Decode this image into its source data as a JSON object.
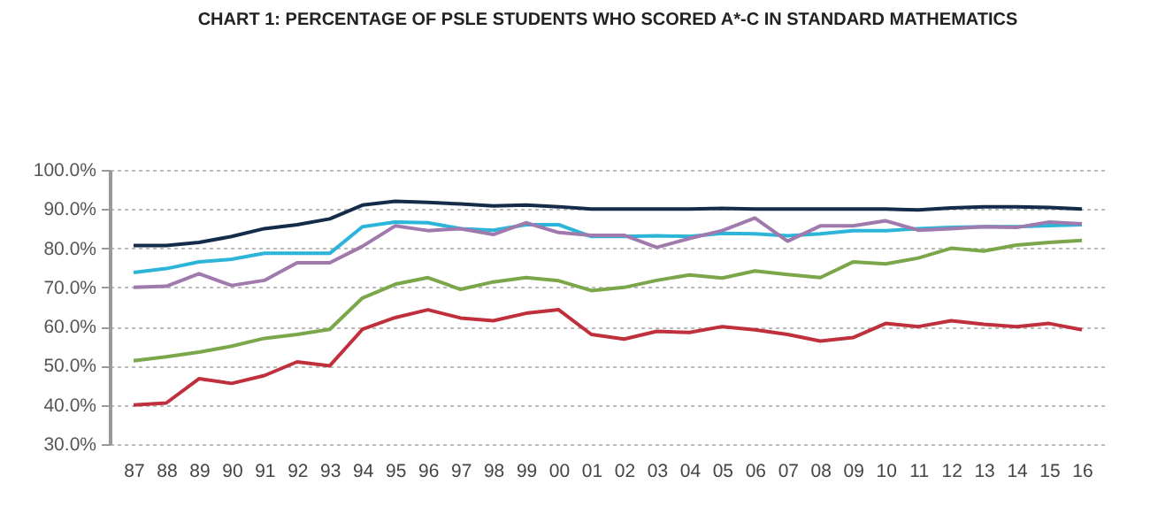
{
  "chart_data": {
    "type": "line",
    "title": "CHART 1: PERCENTAGE OF PSLE STUDENTS WHO SCORED A*-C IN STANDARD MATHEMATICS",
    "categories": [
      "87",
      "88",
      "89",
      "90",
      "91",
      "92",
      "93",
      "94",
      "95",
      "96",
      "97",
      "98",
      "99",
      "00",
      "01",
      "02",
      "03",
      "04",
      "05",
      "06",
      "07",
      "08",
      "09",
      "10",
      "11",
      "12",
      "13",
      "14",
      "15",
      "16"
    ],
    "series": [
      {
        "color": "#142c4a",
        "values": [
          80.7,
          80.7,
          81.5,
          83,
          85,
          86,
          87.5,
          91,
          92,
          91.7,
          91.3,
          90.8,
          91,
          90.6,
          90,
          90,
          90,
          90,
          90.2,
          90,
          90,
          90,
          90,
          90,
          89.8,
          90.3,
          90.6,
          90.6,
          90.4,
          90
        ]
      },
      {
        "color": "#2db4d9",
        "values": [
          73.8,
          74.8,
          76.5,
          77.2,
          78.7,
          78.7,
          78.7,
          85.5,
          86.7,
          86.5,
          85,
          84.6,
          86,
          86,
          83,
          83,
          83.2,
          83,
          83.8,
          83.7,
          83.2,
          83.7,
          84.5,
          84.5,
          85,
          85.3,
          85.5,
          85.5,
          85.8,
          86
        ]
      },
      {
        "color": "#a07aad",
        "values": [
          70,
          70.3,
          73.5,
          70.5,
          71.8,
          76.3,
          76.3,
          80.5,
          85.7,
          84.5,
          85,
          83.5,
          86.5,
          84,
          83.3,
          83.3,
          80.2,
          82.5,
          84.5,
          87.7,
          81.8,
          85.7,
          85.7,
          87,
          84.6,
          85,
          85.5,
          85.3,
          86.7,
          86.2
        ]
      },
      {
        "color": "#7ba64a",
        "values": [
          51.3,
          52.3,
          53.5,
          55,
          57,
          58,
          59.3,
          67.3,
          70.8,
          72.5,
          69.5,
          71.4,
          72.5,
          71.7,
          69.2,
          70,
          71.8,
          73.2,
          72.4,
          74.2,
          73.3,
          72.5,
          76.5,
          76,
          77.5,
          80,
          79.3,
          80.8,
          81.5,
          82
        ]
      },
      {
        "color": "#c0303c",
        "values": [
          40,
          40.5,
          46.7,
          45.5,
          47.5,
          51,
          50,
          59.3,
          62.3,
          64.3,
          62.2,
          61.5,
          63.4,
          64.3,
          58,
          56.8,
          58.8,
          58.5,
          60,
          59.2,
          58,
          56.3,
          57.2,
          60.8,
          60,
          61.5,
          60.6,
          60,
          60.8,
          59.2
        ]
      }
    ],
    "ylim": [
      30,
      100
    ],
    "yticks": [
      {
        "value": 30,
        "label": "30.0%"
      },
      {
        "value": 40,
        "label": "40.0%"
      },
      {
        "value": 50,
        "label": "50.0%"
      },
      {
        "value": 60,
        "label": "60.0%"
      },
      {
        "value": 70,
        "label": "70.0%"
      },
      {
        "value": 80,
        "label": "80.0%"
      },
      {
        "value": 90,
        "label": "90.0%"
      },
      {
        "value": 100,
        "label": "100.0%"
      }
    ],
    "grid": "y",
    "line_style": "solid"
  }
}
